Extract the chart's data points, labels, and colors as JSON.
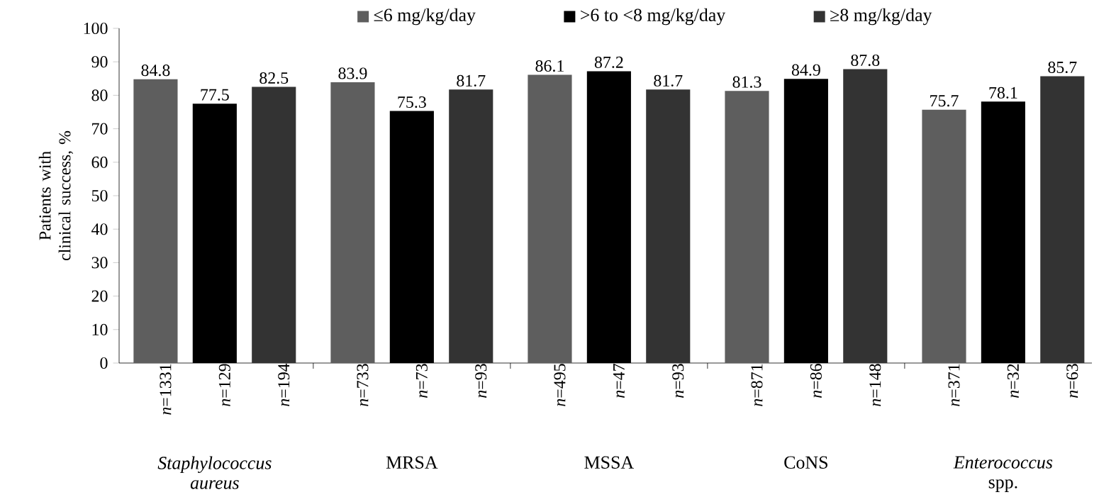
{
  "chart_data": {
    "type": "bar",
    "ylabel": "Patients with clinical success, %",
    "categories": [
      "*Staphylococcus aureus*",
      "MRSA",
      "MSSA",
      "CoNS",
      "*Enterococcus* spp."
    ],
    "series": [
      {
        "name": "≤6 mg/kg/day",
        "color": "#5e5e5e",
        "values": [
          84.8,
          83.9,
          86.1,
          81.3,
          75.7
        ]
      },
      {
        "name": ">6 to <8 mg/kg/day",
        "color": "#000000",
        "values": [
          77.5,
          75.3,
          87.2,
          84.9,
          78.1
        ]
      },
      {
        "name": "≥8 mg/kg/day",
        "color": "#333333",
        "values": [
          82.5,
          81.7,
          81.7,
          87.8,
          85.7
        ]
      }
    ],
    "ylim": [
      0,
      100
    ],
    "yticks": [
      0,
      10,
      20,
      30,
      40,
      50,
      60,
      70,
      80,
      90,
      100
    ],
    "grid": false,
    "legend": "top",
    "data_labels": true,
    "annotations": [
      "*n*=1331",
      "*n*=129",
      "*n*=194",
      "*n*=733",
      "*n*=73",
      "*n*=93",
      "*n*=495",
      "*n*=47",
      "*n*=93",
      "*n*=871",
      "*n*=86",
      "*n*=148",
      "*n*=371",
      "*n*=32",
      "*n*=63"
    ]
  }
}
